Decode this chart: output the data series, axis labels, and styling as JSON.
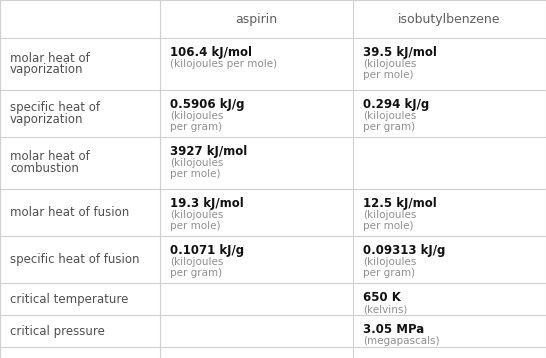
{
  "col_headers": [
    "",
    "aspirin",
    "isobutylbenzene"
  ],
  "rows": [
    {
      "label": "molar heat of\nvaporization",
      "aspirin": {
        "bold": "106.4 kJ/mol",
        "normal": "(kilojoules per mole)"
      },
      "isobutylbenzene": {
        "bold": "39.5 kJ/mol",
        "normal": "(kilojoules\nper mole)"
      }
    },
    {
      "label": "specific heat of\nvaporization",
      "aspirin": {
        "bold": "0.5906 kJ/g",
        "normal": "(kilojoules\nper gram)"
      },
      "isobutylbenzene": {
        "bold": "0.294 kJ/g",
        "normal": "(kilojoules\nper gram)"
      }
    },
    {
      "label": "molar heat of\ncombustion",
      "aspirin": {
        "bold": "3927 kJ/mol",
        "normal": "(kilojoules\nper mole)"
      },
      "isobutylbenzene": {
        "bold": "",
        "normal": ""
      }
    },
    {
      "label": "molar heat of fusion",
      "aspirin": {
        "bold": "19.3 kJ/mol",
        "normal": "(kilojoules\nper mole)"
      },
      "isobutylbenzene": {
        "bold": "12.5 kJ/mol",
        "normal": "(kilojoules\nper mole)"
      }
    },
    {
      "label": "specific heat of fusion",
      "aspirin": {
        "bold": "0.1071 kJ/g",
        "normal": "(kilojoules\nper gram)"
      },
      "isobutylbenzene": {
        "bold": "0.09313 kJ/g",
        "normal": "(kilojoules\nper gram)"
      }
    },
    {
      "label": "critical temperature",
      "aspirin": {
        "bold": "",
        "normal": ""
      },
      "isobutylbenzene": {
        "bold": "650 K",
        "normal": "(kelvins)"
      }
    },
    {
      "label": "critical pressure",
      "aspirin": {
        "bold": "",
        "normal": ""
      },
      "isobutylbenzene": {
        "bold": "3.05 MPa",
        "normal": "(megapascals)"
      }
    }
  ],
  "bg_color": "#ffffff",
  "header_text_color": "#606060",
  "label_text_color": "#505050",
  "bold_text_color": "#111111",
  "normal_text_color": "#909090",
  "line_color": "#d0d0d0",
  "figsize": [
    5.46,
    3.58
  ],
  "dpi": 100
}
